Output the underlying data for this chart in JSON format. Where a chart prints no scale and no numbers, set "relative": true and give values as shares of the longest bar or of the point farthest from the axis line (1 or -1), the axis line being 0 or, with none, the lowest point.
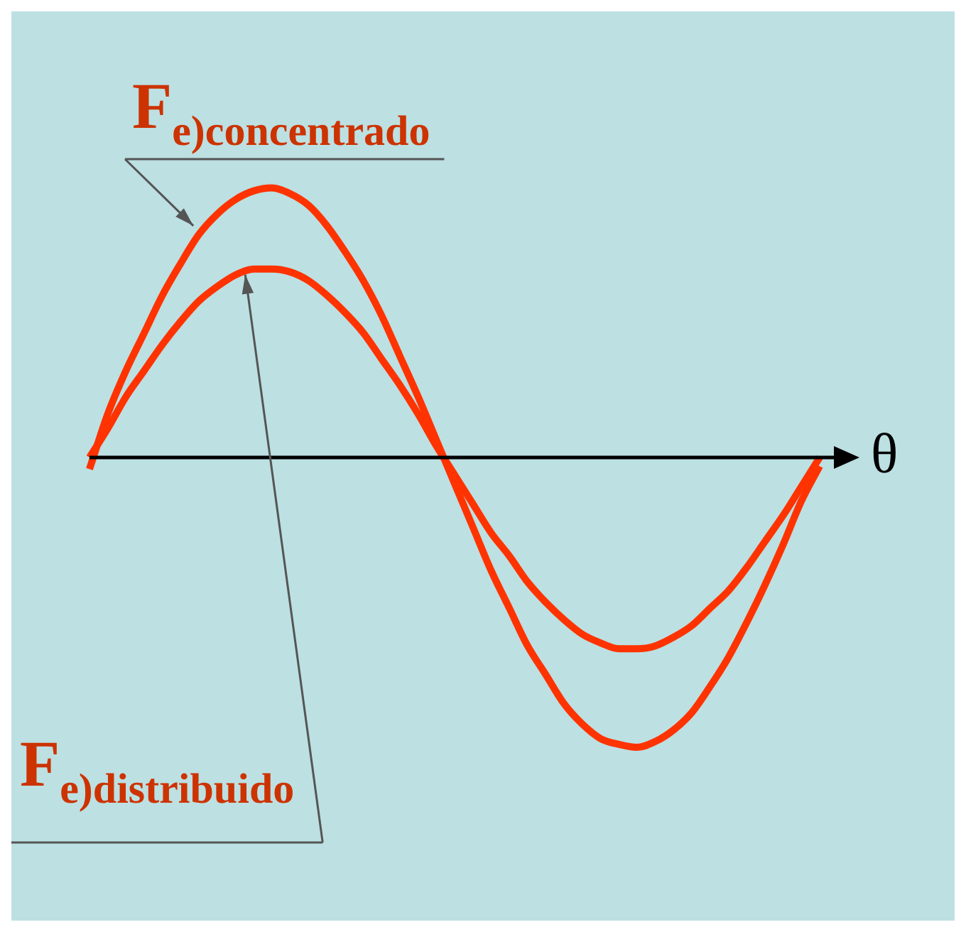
{
  "chart_data": {
    "type": "line",
    "relative": true,
    "xlabel": "θ",
    "legend": false,
    "marker": "none",
    "line_style": "solid",
    "categories": [
      null,
      null,
      null,
      null,
      null,
      null,
      null,
      null,
      null,
      null,
      null,
      null,
      null,
      null,
      null,
      null,
      null,
      null,
      null,
      null,
      null,
      null,
      null,
      null,
      null,
      null,
      null,
      null,
      null,
      null,
      null,
      null,
      null,
      null,
      null,
      null,
      null,
      null,
      null,
      null,
      null
    ],
    "series": [
      {
        "name": "F$_{e)concentrado}$",
        "color": "#ff3300",
        "values": [
          -0.04,
          0.15,
          0.3,
          0.43,
          0.56,
          0.67,
          0.77,
          0.84,
          0.89,
          0.92,
          0.93,
          0.91,
          0.87,
          0.8,
          0.71,
          0.61,
          0.49,
          0.35,
          0.21,
          0.06,
          -0.09,
          -0.24,
          -0.39,
          -0.52,
          -0.65,
          -0.75,
          -0.85,
          -0.92,
          -0.97,
          -0.99,
          -1,
          -0.98,
          -0.94,
          -0.88,
          -0.79,
          -0.69,
          -0.57,
          -0.44,
          -0.3,
          -0.15,
          -0.03
        ]
      },
      {
        "name": "F$_{e)distribuido}$",
        "color": "#ff3300",
        "values": [
          0,
          0.1,
          0.21,
          0.3,
          0.39,
          0.47,
          0.54,
          0.59,
          0.63,
          0.65,
          0.65,
          0.64,
          0.61,
          0.56,
          0.5,
          0.43,
          0.34,
          0.25,
          0.15,
          0.04,
          -0.06,
          -0.16,
          -0.26,
          -0.34,
          -0.43,
          -0.5,
          -0.56,
          -0.61,
          -0.64,
          -0.66,
          -0.66,
          -0.65,
          -0.62,
          -0.58,
          -0.52,
          -0.46,
          -0.38,
          -0.29,
          -0.2,
          -0.1,
          0
        ]
      }
    ]
  }
}
